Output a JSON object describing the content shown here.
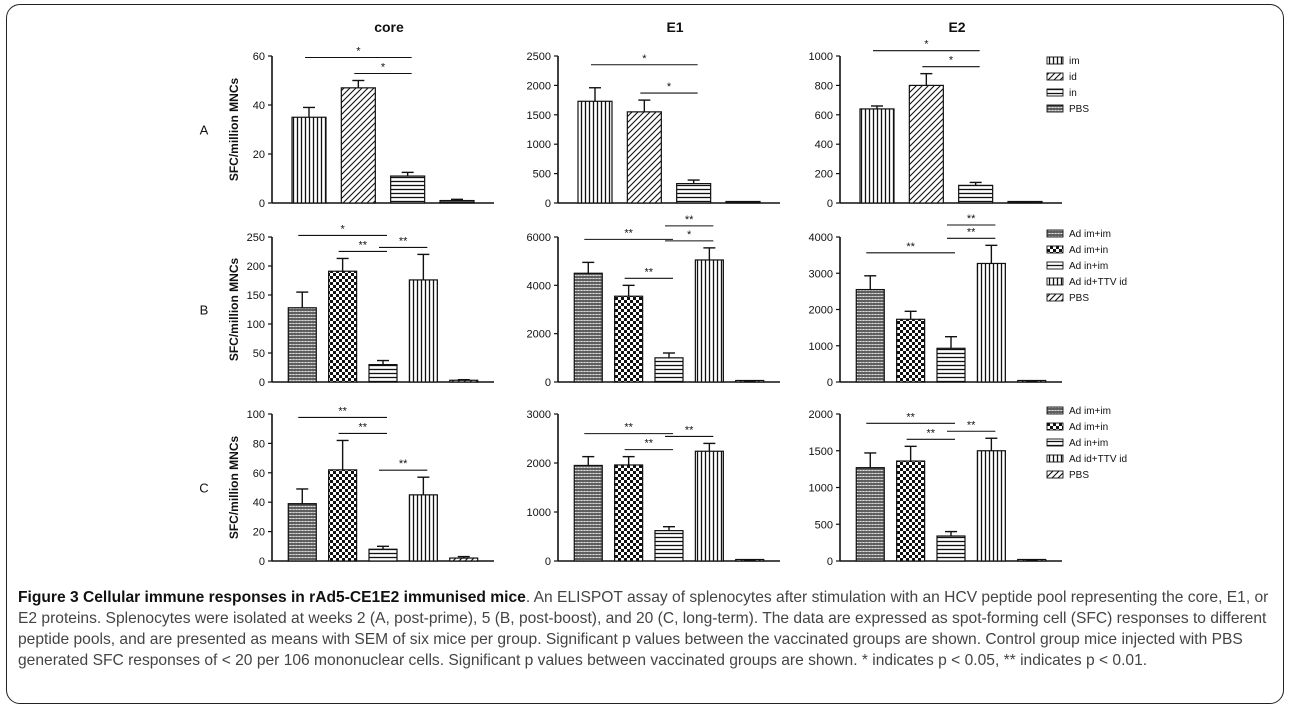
{
  "figure": {
    "row_labels": [
      "A",
      "B",
      "C"
    ],
    "column_titles": [
      "core",
      "E1",
      "E2"
    ],
    "ylabel": "SFC/million MNCs",
    "legends": [
      {
        "row": "A",
        "entries": [
          "im",
          "id",
          "in",
          "PBS"
        ]
      },
      {
        "row": "B",
        "entries": [
          "Ad im+im",
          "Ad im+in",
          "Ad in+im",
          "Ad id+TTV id",
          "PBS"
        ]
      },
      {
        "row": "C",
        "entries": [
          "Ad im+im",
          "Ad im+in",
          "Ad in+im",
          "Ad id+TTV id",
          "PBS"
        ]
      }
    ],
    "patterns": {
      "A": [
        "vert",
        "diag",
        "horiz",
        "dense"
      ],
      "B": [
        "dense",
        "check",
        "horiz",
        "vert",
        "diag"
      ],
      "C": [
        "dense",
        "check",
        "horiz",
        "vert",
        "diag"
      ]
    }
  },
  "chart_data": [
    {
      "type": "bar",
      "row": "A",
      "title": "core",
      "ylabel": "SFC/million MNCs",
      "categories": [
        "im",
        "id",
        "in",
        "PBS"
      ],
      "values": [
        35,
        47,
        11,
        1
      ],
      "errors": [
        4,
        3,
        1.5,
        0.5
      ],
      "ylim": [
        0,
        60
      ],
      "yticks": [
        "0",
        "20",
        "40",
        "60"
      ],
      "significance": [
        {
          "from": 0,
          "to": 2,
          "label": "*"
        },
        {
          "from": 1,
          "to": 2,
          "label": "*"
        }
      ]
    },
    {
      "type": "bar",
      "row": "A",
      "title": "E1",
      "ylabel": "",
      "categories": [
        "im",
        "id",
        "in",
        "PBS"
      ],
      "values": [
        1730,
        1550,
        330,
        5
      ],
      "errors": [
        230,
        200,
        60,
        5
      ],
      "ylim": [
        0,
        2500
      ],
      "yticks": [
        "0",
        "500",
        "1000",
        "1500",
        "2000",
        "2500"
      ],
      "significance": [
        {
          "from": 0,
          "to": 2,
          "label": "*"
        },
        {
          "from": 1,
          "to": 2,
          "label": "*"
        }
      ]
    },
    {
      "type": "bar",
      "row": "A",
      "title": "E2",
      "ylabel": "",
      "categories": [
        "im",
        "id",
        "in",
        "PBS"
      ],
      "values": [
        640,
        800,
        120,
        3
      ],
      "errors": [
        20,
        80,
        20,
        3
      ],
      "ylim": [
        0,
        1000
      ],
      "yticks": [
        "0",
        "200",
        "400",
        "600",
        "800",
        "1000"
      ],
      "significance": [
        {
          "from": 0,
          "to": 2,
          "label": "*"
        },
        {
          "from": 1,
          "to": 2,
          "label": "*"
        }
      ]
    },
    {
      "type": "bar",
      "row": "B",
      "title": "",
      "ylabel": "SFC/million MNCs",
      "categories": [
        "Ad im+im",
        "Ad im+in",
        "Ad in+im",
        "Ad id+TTV id",
        "PBS"
      ],
      "values": [
        128,
        191,
        30,
        176,
        3
      ],
      "errors": [
        27,
        22,
        7,
        44,
        1
      ],
      "ylim": [
        0,
        250
      ],
      "yticks": [
        "0",
        "50",
        "100",
        "150",
        "200",
        "250"
      ],
      "significance": [
        {
          "from": 0,
          "to": 2,
          "label": "*"
        },
        {
          "from": 1,
          "to": 2,
          "label": "**"
        },
        {
          "from": 2,
          "to": 3,
          "label": "**"
        }
      ]
    },
    {
      "type": "bar",
      "row": "B",
      "title": "",
      "ylabel": "",
      "categories": [
        "Ad im+im",
        "Ad im+in",
        "Ad in+im",
        "Ad id+TTV id",
        "PBS"
      ],
      "values": [
        4500,
        3550,
        1000,
        5050,
        20
      ],
      "errors": [
        450,
        450,
        200,
        500,
        20
      ],
      "ylim": [
        0,
        6000
      ],
      "yticks": [
        "0",
        "2000",
        "4000",
        "6000"
      ],
      "significance": [
        {
          "from": 0,
          "to": 2,
          "label": "**"
        },
        {
          "from": 1,
          "to": 2,
          "label": "**"
        },
        {
          "from": 2,
          "to": 3,
          "label": "*"
        },
        {
          "from": 2,
          "to": 3,
          "label": "**"
        }
      ]
    },
    {
      "type": "bar",
      "row": "B",
      "title": "",
      "ylabel": "",
      "categories": [
        "Ad im+im",
        "Ad im+in",
        "Ad in+im",
        "Ad id+TTV id",
        "PBS"
      ],
      "values": [
        2550,
        1730,
        930,
        3270,
        10
      ],
      "errors": [
        380,
        220,
        320,
        500,
        10
      ],
      "ylim": [
        0,
        4000
      ],
      "yticks": [
        "0",
        "1000",
        "2000",
        "3000",
        "4000"
      ],
      "significance": [
        {
          "from": 0,
          "to": 2,
          "label": "**"
        },
        {
          "from": 2,
          "to": 3,
          "label": "**"
        },
        {
          "from": 2,
          "to": 3,
          "label": "**"
        }
      ]
    },
    {
      "type": "bar",
      "row": "C",
      "title": "",
      "ylabel": "SFC/million MNCs",
      "categories": [
        "Ad im+im",
        "Ad im+in",
        "Ad in+im",
        "Ad id+TTV id",
        "PBS"
      ],
      "values": [
        39,
        62,
        8,
        45,
        2
      ],
      "errors": [
        10,
        20,
        2,
        12,
        1
      ],
      "ylim": [
        0,
        100
      ],
      "yticks": [
        "0",
        "20",
        "40",
        "60",
        "80",
        "100"
      ],
      "significance": [
        {
          "from": 0,
          "to": 2,
          "label": "**"
        },
        {
          "from": 1,
          "to": 2,
          "label": "**"
        },
        {
          "from": 2,
          "to": 3,
          "label": "**"
        }
      ]
    },
    {
      "type": "bar",
      "row": "C",
      "title": "",
      "ylabel": "",
      "categories": [
        "Ad im+im",
        "Ad im+in",
        "Ad in+im",
        "Ad id+TTV id",
        "PBS"
      ],
      "values": [
        1950,
        1960,
        620,
        2240,
        5
      ],
      "errors": [
        180,
        170,
        80,
        160,
        5
      ],
      "ylim": [
        0,
        3000
      ],
      "yticks": [
        "0",
        "1000",
        "2000",
        "3000"
      ],
      "significance": [
        {
          "from": 0,
          "to": 2,
          "label": "**"
        },
        {
          "from": 1,
          "to": 2,
          "label": "**"
        },
        {
          "from": 2,
          "to": 3,
          "label": "**"
        }
      ]
    },
    {
      "type": "bar",
      "row": "C",
      "title": "",
      "ylabel": "",
      "categories": [
        "Ad im+im",
        "Ad im+in",
        "Ad in+im",
        "Ad id+TTV id",
        "PBS"
      ],
      "values": [
        1270,
        1360,
        340,
        1500,
        5
      ],
      "errors": [
        200,
        200,
        60,
        170,
        5
      ],
      "ylim": [
        0,
        2000
      ],
      "yticks": [
        "0",
        "500",
        "1000",
        "1500",
        "2000"
      ],
      "significance": [
        {
          "from": 0,
          "to": 2,
          "label": "**"
        },
        {
          "from": 1,
          "to": 2,
          "label": "**"
        },
        {
          "from": 2,
          "to": 3,
          "label": "**"
        }
      ]
    }
  ],
  "caption": {
    "title": "Figure 3 Cellular immune responses in rAd5-CE1E2 immunised mice",
    "body": ". An ELISPOT assay of splenocytes after stimulation with an HCV peptide pool representing the core, E1, or E2 proteins. Splenocytes were isolated at weeks 2 (A, post-prime), 5 (B, post-boost), and 20 (C, long-term). The data are expressed as spot-forming cell (SFC) responses to different peptide pools, and are presented as means with SEM of six mice per group. Significant p values between the vaccinated groups are shown. Control group mice injected with PBS generated SFC responses of < 20 per 106 mononuclear cells. Significant p values between vaccinated groups are shown. * indicates p < 0.05, ** indicates p < 0.01."
  }
}
